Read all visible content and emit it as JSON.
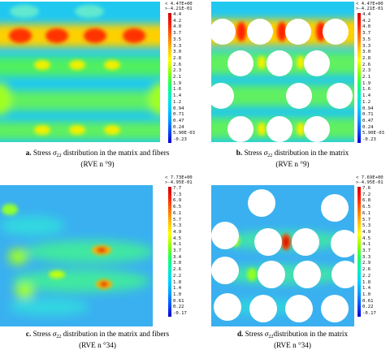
{
  "colorbar_colors": [
    "#0000d0",
    "#0050ff",
    "#00a0ff",
    "#00d0ff",
    "#00f0c0",
    "#20ff60",
    "#90ff00",
    "#ffff00",
    "#ffc000",
    "#ff7000",
    "#ff2000",
    "#d00000"
  ],
  "panels": [
    {
      "id": "a",
      "header_max": "< 4.47E+00",
      "header_min": ">-4.21E-01",
      "ticks": [
        "4.4",
        "4.2",
        "4.0",
        "3.7",
        "3.5",
        "3.3",
        "3.0",
        "2.8",
        "2.6",
        "2.3",
        "2.1",
        "1.9",
        "1.6",
        "1.4",
        "1.2",
        "0.94",
        "0.71",
        "0.47",
        "0.24",
        "5.90E-03",
        "-0.23"
      ],
      "caption_letter": "a.",
      "caption_pre": "Stress ",
      "caption_sym": "σ",
      "caption_sub": "22",
      "caption_post": " distribution in the matrix and fibers",
      "caption_line2": "(RVE n °9)"
    },
    {
      "id": "b",
      "header_max": "< 4.47E+00",
      "header_min": ">-4.21E-01",
      "ticks": [
        "4.4",
        "4.2",
        "4.0",
        "3.7",
        "3.5",
        "3.3",
        "3.0",
        "2.8",
        "2.6",
        "2.3",
        "2.1",
        "1.9",
        "1.6",
        "1.4",
        "1.2",
        "0.94",
        "0.71",
        "0.47",
        "0.24",
        "5.90E-03",
        "-0.23"
      ],
      "caption_letter": "b.",
      "caption_pre": "Stress ",
      "caption_sym": "σ",
      "caption_sub": "22",
      "caption_post": " distribution in the matrix",
      "caption_line2": "(RVE n °9)"
    },
    {
      "id": "c",
      "header_max": "< 7.73E+00",
      "header_min": ">-4.95E-01",
      "ticks": [
        "7.7",
        "7.3",
        "6.9",
        "6.5",
        "6.1",
        "5.7",
        "5.3",
        "4.9",
        "4.5",
        "4.1",
        "3.7",
        "3.4",
        "3.0",
        "2.6",
        "2.2",
        "1.8",
        "1.4",
        "1.0",
        "0.61",
        "0.22",
        "-0.17"
      ],
      "caption_letter": "c.",
      "caption_pre": "Stress ",
      "caption_sym": "σ",
      "caption_sub": "22",
      "caption_post": " distribution in the matrix and fibers",
      "caption_line2": "(RVE n °34)"
    },
    {
      "id": "d",
      "header_max": "< 7.69E+00",
      "header_min": ">-4.95E-01",
      "ticks": [
        "7.6",
        "7.2",
        "6.8",
        "6.5",
        "6.1",
        "5.7",
        "5.3",
        "4.9",
        "4.5",
        "4.1",
        "3.7",
        "3.3",
        "2.9",
        "2.6",
        "2.2",
        "1.8",
        "1.4",
        "1.0",
        "0.61",
        "0.22",
        "-0.17"
      ],
      "caption_letter": "d.",
      "caption_pre": "Stress ",
      "caption_sym": "σ",
      "caption_sub": "22",
      "caption_post": "distribution in the matrix",
      "caption_line2": "(RVE n °34)"
    }
  ]
}
